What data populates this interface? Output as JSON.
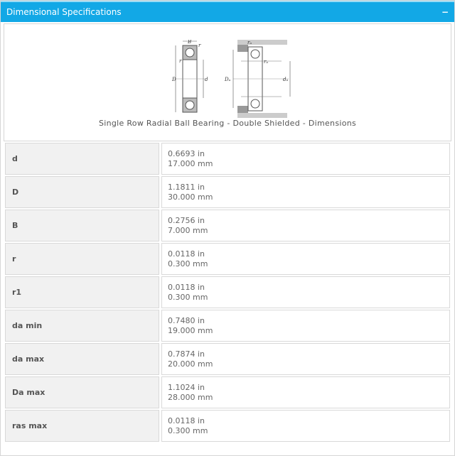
{
  "header": {
    "title": "Dimensional Specifications",
    "collapse_label": "−"
  },
  "figure": {
    "caption": "Single Row Radial Ball Bearing - Double Shielded - Dimensions",
    "labels": {
      "B": "B",
      "r": "r",
      "D": "D",
      "d": "d",
      "r1": "r",
      "ra": "rₐ",
      "Da": "Dₐ",
      "da": "dₐ"
    }
  },
  "rows": [
    {
      "label": "d",
      "in": "0.6693 in",
      "mm": "17.000 mm"
    },
    {
      "label": "D",
      "in": "1.1811 in",
      "mm": "30.000 mm"
    },
    {
      "label": "B",
      "in": "0.2756 in",
      "mm": "7.000 mm"
    },
    {
      "label": "r",
      "in": "0.0118 in",
      "mm": "0.300 mm"
    },
    {
      "label": "r1",
      "in": "0.0118 in",
      "mm": "0.300 mm"
    },
    {
      "label": "da min",
      "in": "0.7480 in",
      "mm": "19.000 mm"
    },
    {
      "label": "da max",
      "in": "0.7874 in",
      "mm": "20.000 mm"
    },
    {
      "label": "Da max",
      "in": "1.1024 in",
      "mm": "28.000 mm"
    },
    {
      "label": "ras max",
      "in": "0.0118 in",
      "mm": "0.300 mm"
    }
  ]
}
